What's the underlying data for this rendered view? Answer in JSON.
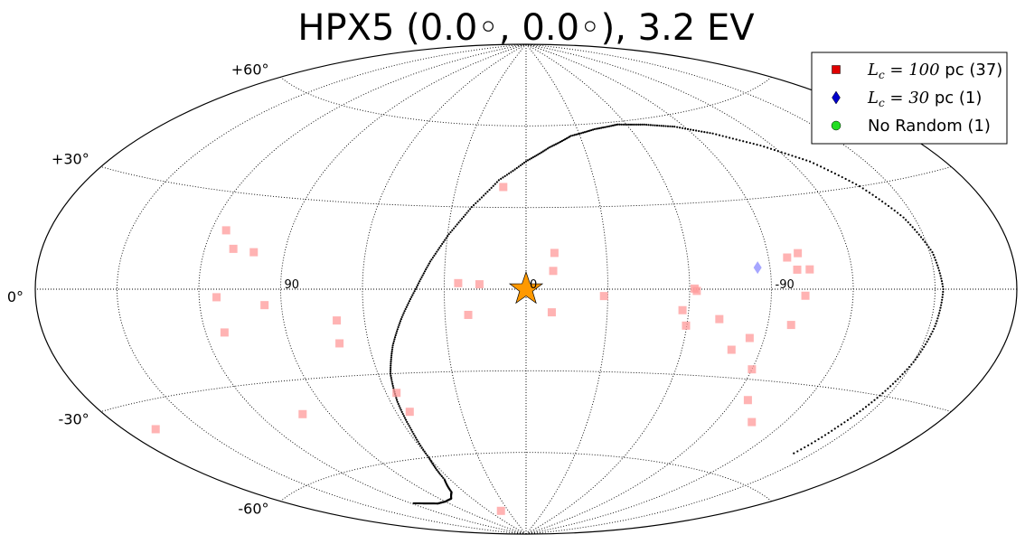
{
  "chart_data": {
    "type": "scatter",
    "projection": "aitoff",
    "title": "HPX5 (0.0◦, 0.0◦), 3.2 EV",
    "grid": true,
    "lat_ticks": [
      {
        "value": 60,
        "label": "+60°"
      },
      {
        "value": 30,
        "label": "+30°"
      },
      {
        "value": 0,
        "label": "0°"
      },
      {
        "value": -30,
        "label": "-30°"
      },
      {
        "value": -60,
        "label": "-60°"
      }
    ],
    "lon_ticks": [
      {
        "value": 90,
        "label": "90"
      },
      {
        "value": 0,
        "label": "0"
      },
      {
        "value": -90,
        "label": "-90"
      }
    ],
    "legend": {
      "position": "top-right",
      "entries": [
        {
          "math": "L",
          "sub": "c",
          "eq": " = 100",
          "text": " pc (37)",
          "marker": "square",
          "color": "#e00000"
        },
        {
          "math": "L",
          "sub": "c",
          "eq": " = 30",
          "text": " pc (1)",
          "marker": "diamond",
          "color": "#0000cc"
        },
        {
          "math": "",
          "sub": "",
          "eq": "",
          "text": "No Random (1)",
          "marker": "circle",
          "color": "#22dd22"
        }
      ]
    },
    "source": {
      "lon": 0.0,
      "lat": 0.0,
      "color": "#ff9900"
    },
    "series": [
      {
        "name": "Lc=100 pc (37)",
        "marker": "square",
        "color": "#ff9999",
        "points": [
          {
            "lon": 9.8,
            "lat": 37.5
          },
          {
            "lon": -10.6,
            "lat": 13.3
          },
          {
            "lon": -10.0,
            "lat": 6.7
          },
          {
            "lon": 24.9,
            "lat": 2.2
          },
          {
            "lon": 17.1,
            "lat": 1.8
          },
          {
            "lon": -28.6,
            "lat": -2.5
          },
          {
            "lon": -9.5,
            "lat": -8.5
          },
          {
            "lon": 21.4,
            "lat": -9.4
          },
          {
            "lon": 114.5,
            "lat": 18.3
          },
          {
            "lon": 109.4,
            "lat": 12.7
          },
          {
            "lon": 101.5,
            "lat": 11.9
          },
          {
            "lon": 113.6,
            "lat": -2.5
          },
          {
            "lon": 113.0,
            "lat": -13.5
          },
          {
            "lon": 96.2,
            "lat": -5.2
          },
          {
            "lon": 70.3,
            "lat": -10.8
          },
          {
            "lon": 71.1,
            "lat": -18.7
          },
          {
            "lon": 101.7,
            "lat": -41.0
          },
          {
            "lon": 55.6,
            "lat": -36.8
          },
          {
            "lon": 53.8,
            "lat": -43.7
          },
          {
            "lon": 168.0,
            "lat": -37.0
          },
          {
            "lon": 41.8,
            "lat": -81.0
          },
          {
            "lon": -61.8,
            "lat": 0.2
          },
          {
            "lon": -62.6,
            "lat": -0.6
          },
          {
            "lon": -57.7,
            "lat": -7.4
          },
          {
            "lon": -71.7,
            "lat": -10.3
          },
          {
            "lon": -59.7,
            "lat": -12.8
          },
          {
            "lon": -79.0,
            "lat": -20.6
          },
          {
            "lon": -90.0,
            "lat": -26.7
          },
          {
            "lon": -84.5,
            "lat": -16.4
          },
          {
            "lon": -98.7,
            "lat": -11.6
          },
          {
            "lon": -96.9,
            "lat": 10.3
          },
          {
            "lon": -99.9,
            "lat": 6.3
          },
          {
            "lon": -104.5,
            "lat": 6.3
          },
          {
            "lon": -102.5,
            "lat": -2.1
          },
          {
            "lon": -101.2,
            "lat": 11.6
          },
          {
            "lon": -96.1,
            "lat": -36.7
          },
          {
            "lon": -106.0,
            "lat": -43.3
          }
        ]
      },
      {
        "name": "Lc=30 pc (1)",
        "marker": "diamond",
        "color": "#8888ff",
        "points": [
          {
            "lon": -85.4,
            "lat": 7.2
          }
        ]
      }
    ],
    "galactic_plane": [
      {
        "lon": 118,
        "lat": -73
      },
      {
        "lon": 110,
        "lat": -74
      },
      {
        "lon": 100,
        "lat": -75
      },
      {
        "lon": 90,
        "lat": -75
      },
      {
        "lon": 80,
        "lat": -74.5
      },
      {
        "lon": 71,
        "lat": -72.5
      },
      {
        "lon": 64,
        "lat": -68
      },
      {
        "lon": 60,
        "lat": -60
      },
      {
        "lon": 58,
        "lat": -50
      },
      {
        "lon": 57,
        "lat": -40
      },
      {
        "lon": 55,
        "lat": -30
      },
      {
        "lon": 51,
        "lat": -20
      },
      {
        "lon": 46,
        "lat": -10
      },
      {
        "lon": 40.5,
        "lat": 0
      },
      {
        "lon": 35.5,
        "lat": 10
      },
      {
        "lon": 29.5,
        "lat": 20
      },
      {
        "lon": 22,
        "lat": 30
      },
      {
        "lon": 12,
        "lat": 40
      },
      {
        "lon": 0,
        "lat": 47
      },
      {
        "lon": -12,
        "lat": 52
      },
      {
        "lon": -25,
        "lat": 56
      },
      {
        "lon": -40,
        "lat": 58
      },
      {
        "lon": -55,
        "lat": 59
      },
      {
        "lon": -70,
        "lat": 58
      },
      {
        "lon": -85,
        "lat": 56
      },
      {
        "lon": -100,
        "lat": 52
      },
      {
        "lon": -115,
        "lat": 46
      },
      {
        "lon": -128,
        "lat": 39
      },
      {
        "lon": -138,
        "lat": 30
      },
      {
        "lon": -146,
        "lat": 20
      },
      {
        "lon": -151,
        "lat": 10
      },
      {
        "lon": -153,
        "lat": 0
      },
      {
        "lon": -152,
        "lat": -10
      },
      {
        "lon": -150,
        "lat": -20
      },
      {
        "lon": -147,
        "lat": -30
      },
      {
        "lon": -144,
        "lat": -40
      },
      {
        "lon": -142,
        "lat": -50
      }
    ]
  }
}
